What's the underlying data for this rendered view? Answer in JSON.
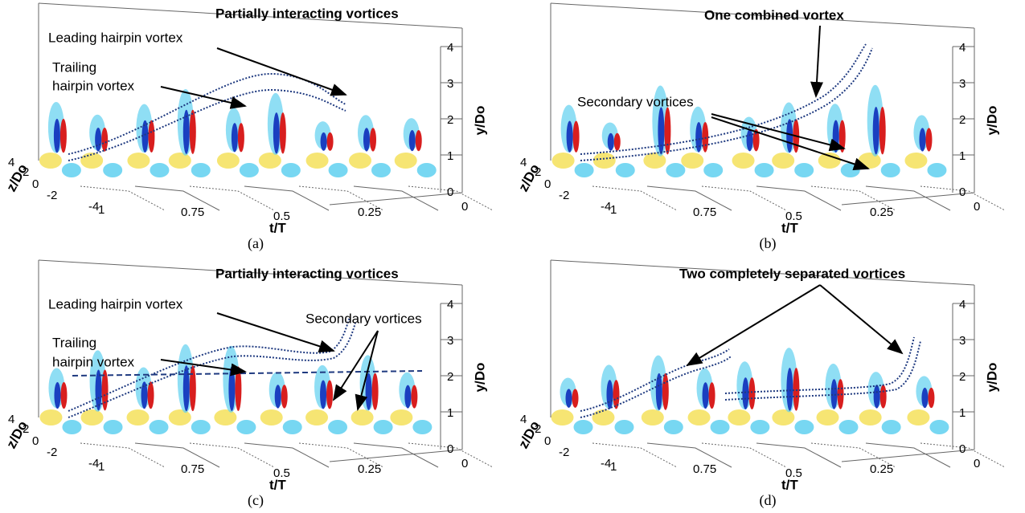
{
  "axes": {
    "y_label": "y/Do",
    "y_ticks": [
      "0",
      "1",
      "2",
      "3",
      "4"
    ],
    "z_label": "z/Do",
    "z_ticks": [
      "4",
      "2",
      "0",
      "-2",
      "-4"
    ],
    "t_label": "t/T",
    "t_ticks": [
      "1",
      "0.75",
      "0.5",
      "0.25",
      "0"
    ]
  },
  "panels": [
    {
      "caption": "(a)",
      "annotations": [
        "Partially interacting vortices",
        "Leading hairpin vortex",
        "Trailing",
        "hairpin vortex"
      ]
    },
    {
      "caption": "(b)",
      "annotations": [
        "One combined vortex",
        "Secondary vortices"
      ]
    },
    {
      "caption": "(c)",
      "annotations": [
        "Partially interacting vortices",
        "Leading hairpin vortex",
        "Trailing",
        "hairpin vortex",
        "Secondary vortices"
      ]
    },
    {
      "caption": "(d)",
      "annotations": [
        "Two completely separated vortices"
      ]
    }
  ]
}
